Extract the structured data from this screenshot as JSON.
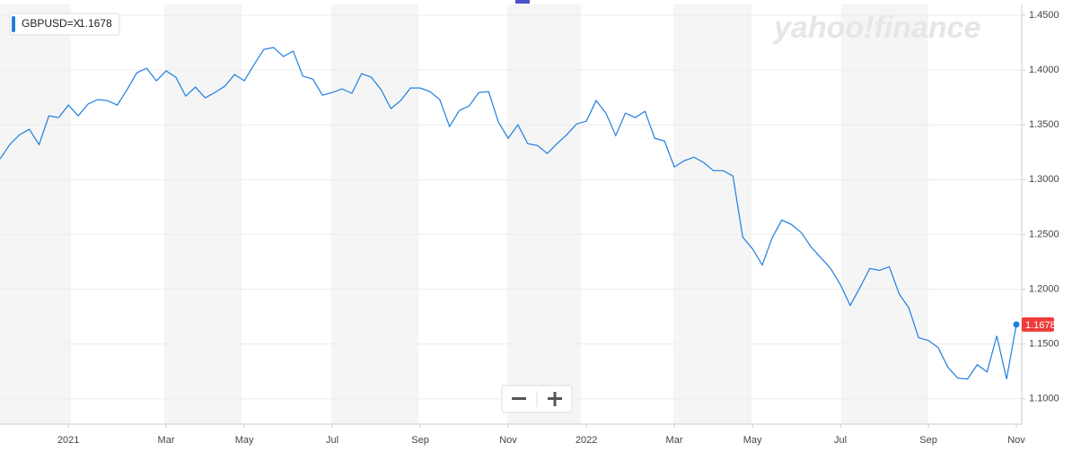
{
  "chart_data": {
    "type": "line",
    "watermark": "yahoo!finance",
    "categories": [
      null,
      null,
      null,
      null,
      null,
      null,
      null,
      "2021",
      null,
      null,
      null,
      null,
      null,
      null,
      null,
      null,
      null,
      "Mar",
      null,
      null,
      null,
      null,
      null,
      null,
      null,
      "May",
      null,
      null,
      null,
      null,
      null,
      null,
      null,
      null,
      "Jul",
      null,
      null,
      null,
      null,
      null,
      null,
      null,
      null,
      "Sep",
      null,
      null,
      null,
      null,
      null,
      null,
      null,
      null,
      "Nov",
      null,
      null,
      null,
      null,
      null,
      null,
      null,
      "2022",
      null,
      null,
      null,
      null,
      null,
      null,
      null,
      null,
      "Mar",
      null,
      null,
      null,
      null,
      null,
      null,
      null,
      "May",
      null,
      null,
      null,
      null,
      null,
      null,
      null,
      null,
      "Jul",
      null,
      null,
      null,
      null,
      null,
      null,
      null,
      null,
      "Sep",
      null,
      null,
      null,
      null,
      null,
      null,
      null,
      null,
      "Nov"
    ],
    "series": [
      {
        "name": "GBPUSD=X",
        "color": "#1e7ee0",
        "values": [
          1.3189,
          1.332,
          1.341,
          1.3459,
          1.332,
          1.3582,
          1.3566,
          1.368,
          1.3582,
          1.3689,
          1.373,
          1.3721,
          1.368,
          1.382,
          1.3975,
          1.4016,
          1.3902,
          1.3992,
          1.3934,
          1.3762,
          1.3844,
          1.3746,
          1.3795,
          1.3852,
          1.3959,
          1.3902,
          1.4049,
          1.4189,
          1.4205,
          1.4123,
          1.4172,
          1.3943,
          1.3918,
          1.377,
          1.3795,
          1.3828,
          1.3787,
          1.3967,
          1.3934,
          1.382,
          1.3648,
          1.3721,
          1.3836,
          1.3836,
          1.3803,
          1.373,
          1.3484,
          1.3631,
          1.3672,
          1.3795,
          1.3803,
          1.3525,
          1.3377,
          1.35,
          1.3328,
          1.3311,
          1.3238,
          1.3328,
          1.341,
          1.3508,
          1.3533,
          1.3721,
          1.3607,
          1.3402,
          1.3607,
          1.3566,
          1.3623,
          1.3377,
          1.3352,
          1.3115,
          1.3172,
          1.3205,
          1.3156,
          1.3082,
          1.3082,
          1.3033,
          1.2475,
          1.2369,
          1.2221,
          1.2467,
          1.2631,
          1.259,
          1.2516,
          1.2385,
          1.2287,
          1.2189,
          1.2041,
          1.1852,
          1.2016,
          1.2189,
          1.2172,
          1.2205,
          1.1959,
          1.1828,
          1.1557,
          1.1533,
          1.1467,
          1.1287,
          1.1189,
          1.118,
          1.1311,
          1.1246,
          1.1574,
          1.118,
          1.1678
        ]
      }
    ],
    "ylim": [
      1.0769,
      1.4598
    ],
    "yticks": [
      {
        "value": 1.1,
        "label": "1.1000"
      },
      {
        "value": 1.15,
        "label": "1.1500"
      },
      {
        "value": 1.2,
        "label": "1.2000"
      },
      {
        "value": 1.25,
        "label": "1.2500"
      },
      {
        "value": 1.3,
        "label": "1.3000"
      },
      {
        "value": 1.35,
        "label": "1.3500"
      },
      {
        "value": 1.4,
        "label": "1.4000"
      },
      {
        "value": 1.45,
        "label": "1.4500"
      }
    ],
    "grid": true,
    "last_value_color": "#ef3b3b"
  }
}
